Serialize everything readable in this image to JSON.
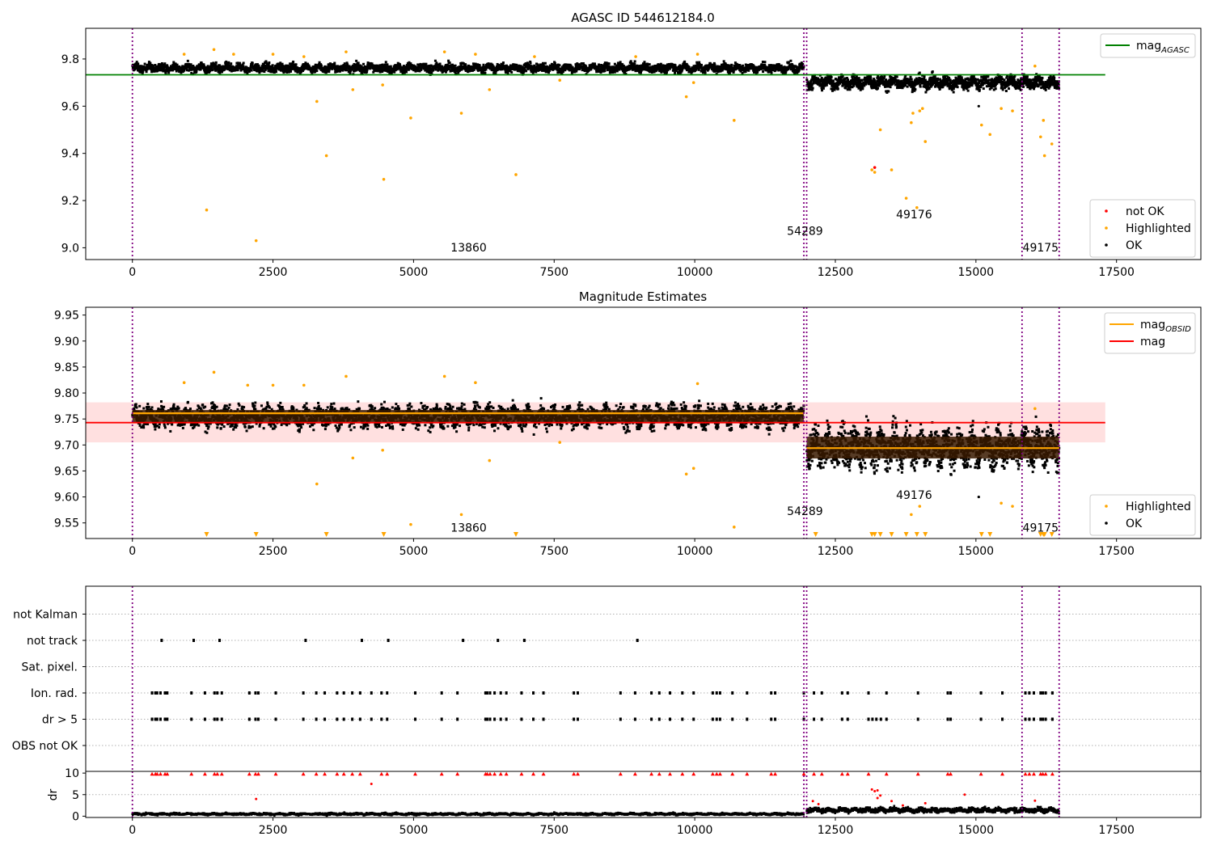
{
  "chart_data": [
    {
      "type": "scatter",
      "title": "AGASC ID 544612184.0",
      "xlabel": "",
      "ylabel": "",
      "xlim": [
        -830,
        19000
      ],
      "ylim": [
        8.95,
        9.93
      ],
      "xticks": [
        0,
        2500,
        5000,
        7500,
        10000,
        12500,
        15000,
        17500
      ],
      "xtick_labels": [
        "0",
        "2500",
        "5000",
        "7500",
        "10000",
        "12500",
        "15000",
        "17500"
      ],
      "yticks": [
        9.0,
        9.2,
        9.4,
        9.6,
        9.8
      ],
      "ytick_labels": [
        "9.0",
        "9.2",
        "9.4",
        "9.6",
        "9.8"
      ],
      "vlines": [
        0,
        11940,
        11990,
        15820,
        16480
      ],
      "vline_color": "#800080",
      "obsid_labels": [
        {
          "text": "13860",
          "x": 5980,
          "y": 8.985
        },
        {
          "text": "54289",
          "x": 11960,
          "y": 9.055
        },
        {
          "text": "49176",
          "x": 13900,
          "y": 9.125
        },
        {
          "text": "49175",
          "x": 16150,
          "y": 8.985
        }
      ],
      "hlines": [
        {
          "name": "mag",
          "subscript": "AGASC",
          "y": 9.733,
          "x": [
            -830,
            17300
          ],
          "color": "#008000"
        }
      ],
      "ok_bands": [
        {
          "x": [
            0,
            11940
          ],
          "center": 9.762,
          "spread": 0.03
        },
        {
          "x": [
            11990,
            16480
          ],
          "center": 9.7,
          "spread": 0.045
        }
      ],
      "highlighted": [
        [
          1320,
          9.16
        ],
        [
          2200,
          9.03
        ],
        [
          3280,
          9.62
        ],
        [
          3450,
          9.39
        ],
        [
          3920,
          9.67
        ],
        [
          4450,
          9.69
        ],
        [
          4470,
          9.29
        ],
        [
          4950,
          9.55
        ],
        [
          5850,
          9.57
        ],
        [
          6350,
          9.67
        ],
        [
          6820,
          9.31
        ],
        [
          7600,
          9.71
        ],
        [
          9850,
          9.64
        ],
        [
          9980,
          9.7
        ],
        [
          10700,
          9.54
        ],
        [
          13150,
          9.33
        ],
        [
          13200,
          9.32
        ],
        [
          13300,
          9.5
        ],
        [
          13500,
          9.33
        ],
        [
          13760,
          9.21
        ],
        [
          13850,
          9.53
        ],
        [
          13880,
          9.57
        ],
        [
          13950,
          9.17
        ],
        [
          14000,
          9.58
        ],
        [
          14050,
          9.59
        ],
        [
          14100,
          9.45
        ],
        [
          15100,
          9.52
        ],
        [
          15250,
          9.48
        ],
        [
          15450,
          9.59
        ],
        [
          15650,
          9.58
        ],
        [
          16150,
          9.47
        ],
        [
          16200,
          9.54
        ],
        [
          16220,
          9.39
        ],
        [
          16350,
          9.44
        ],
        [
          920,
          9.82
        ],
        [
          1450,
          9.84
        ],
        [
          1800,
          9.82
        ],
        [
          2500,
          9.82
        ],
        [
          3050,
          9.81
        ],
        [
          3800,
          9.83
        ],
        [
          5550,
          9.83
        ],
        [
          6100,
          9.82
        ],
        [
          7150,
          9.81
        ],
        [
          8950,
          9.81
        ],
        [
          10050,
          9.82
        ],
        [
          16050,
          9.77
        ]
      ],
      "not_ok": [
        [
          13200,
          9.34
        ]
      ],
      "legends": [
        {
          "position": "top-right",
          "entries": [
            {
              "name": "mag",
              "subscript": "AGASC",
              "kind": "line",
              "color": "#008000"
            }
          ]
        },
        {
          "position": "lower-right",
          "entries": [
            {
              "name": "not OK",
              "kind": "marker",
              "color": "#ff0000"
            },
            {
              "name": "Highlighted",
              "kind": "marker",
              "color": "#ffa500"
            },
            {
              "name": "OK",
              "kind": "marker",
              "color": "#000000"
            }
          ]
        }
      ]
    },
    {
      "type": "scatter",
      "title": "Magnitude Estimates",
      "xlabel": "",
      "ylabel": "",
      "xlim": [
        -830,
        19000
      ],
      "ylim": [
        9.52,
        9.965
      ],
      "xticks": [
        0,
        2500,
        5000,
        7500,
        10000,
        12500,
        15000,
        17500
      ],
      "xtick_labels": [
        "0",
        "2500",
        "5000",
        "7500",
        "10000",
        "12500",
        "15000",
        "17500"
      ],
      "yticks": [
        9.55,
        9.6,
        9.65,
        9.7,
        9.75,
        9.8,
        9.85,
        9.9,
        9.95
      ],
      "ytick_labels": [
        "9.55",
        "9.60",
        "9.65",
        "9.70",
        "9.75",
        "9.80",
        "9.85",
        "9.90",
        "9.95"
      ],
      "vlines": [
        0,
        11940,
        11990,
        15820,
        16480
      ],
      "vline_color": "#800080",
      "obsid_labels": [
        {
          "text": "13860",
          "x": 5980,
          "y": 9.533
        },
        {
          "text": "54289",
          "x": 11960,
          "y": 9.565
        },
        {
          "text": "49176",
          "x": 13900,
          "y": 9.596
        },
        {
          "text": "49175",
          "x": 16150,
          "y": 9.533
        }
      ],
      "mag_band": {
        "x": [
          -830,
          17300
        ],
        "y": [
          9.705,
          9.782
        ],
        "color": "#ffcccc"
      },
      "mag_line": {
        "name": "mag",
        "y": 9.743,
        "x": [
          -830,
          17300
        ],
        "color": "#ff0000"
      },
      "obsid_mags": [
        {
          "x": [
            0,
            11940
          ],
          "y": 9.761
        },
        {
          "x": [
            11990,
            16480
          ],
          "y": 9.694
        }
      ],
      "ok_bands": [
        {
          "x": [
            0,
            11940
          ],
          "center": 9.755,
          "spread": 0.035
        },
        {
          "x": [
            11990,
            16480
          ],
          "center": 9.695,
          "spread": 0.06
        }
      ],
      "highlighted": [
        [
          920,
          9.82
        ],
        [
          1450,
          9.84
        ],
        [
          2050,
          9.815
        ],
        [
          2500,
          9.815
        ],
        [
          3280,
          9.625
        ],
        [
          3050,
          9.815
        ],
        [
          3800,
          9.832
        ],
        [
          3920,
          9.675
        ],
        [
          4450,
          9.69
        ],
        [
          4950,
          9.547
        ],
        [
          5550,
          9.832
        ],
        [
          5850,
          9.566
        ],
        [
          6350,
          9.67
        ],
        [
          6100,
          9.82
        ],
        [
          7600,
          9.705
        ],
        [
          9850,
          9.644
        ],
        [
          9980,
          9.655
        ],
        [
          10050,
          9.818
        ],
        [
          10700,
          9.542
        ],
        [
          13850,
          9.566
        ],
        [
          14000,
          9.582
        ],
        [
          15450,
          9.588
        ],
        [
          15650,
          9.582
        ],
        [
          16050,
          9.77
        ]
      ],
      "floor_markers": [
        1320,
        2200,
        3450,
        4470,
        6820,
        12150,
        13150,
        13200,
        13300,
        13500,
        13760,
        13950,
        14100,
        15100,
        15250,
        16150,
        16200,
        16220,
        16350
      ],
      "legends": [
        {
          "position": "top-right",
          "entries": [
            {
              "name": "mag",
              "subscript": "OBSID",
              "kind": "line",
              "color": "#ffa500"
            },
            {
              "name": "mag",
              "kind": "line",
              "color": "#ff0000"
            }
          ]
        },
        {
          "position": "lower-right",
          "entries": [
            {
              "name": "Highlighted",
              "kind": "marker",
              "color": "#ffa500"
            },
            {
              "name": "OK",
              "kind": "marker",
              "color": "#000000"
            }
          ]
        }
      ]
    },
    {
      "type": "scatter",
      "title": "",
      "xlabel": "",
      "ylabel": "",
      "xlim": [
        -830,
        19000
      ],
      "categories": [
        "OBS not OK",
        "dr > 5",
        "Ion. rad.",
        "Sat. pixel.",
        "not track",
        "not Kalman"
      ],
      "vlines": [
        0,
        11940,
        11990,
        15820,
        16480
      ],
      "vline_color": "#800080",
      "flag_points": {
        "not track": [
          520,
          1090,
          1550,
          3080,
          4080,
          4550,
          5880,
          6500,
          6970,
          8980
        ],
        "Ion. rad.": [
          350,
          410,
          440,
          500,
          580,
          620,
          1050,
          1290,
          1460,
          1510,
          1590,
          2080,
          2190,
          2240,
          2550,
          3040,
          3270,
          3420,
          3640,
          3760,
          3910,
          4050,
          4250,
          4430,
          4530,
          5030,
          5500,
          5780,
          6280,
          6310,
          6360,
          6440,
          6550,
          6650,
          6920,
          7130,
          7310,
          7850,
          7920,
          8680,
          8940,
          9230,
          9370,
          9560,
          9780,
          9980,
          10320,
          10390,
          10450,
          10670,
          10930,
          11360,
          11430,
          11940,
          12120,
          12260,
          12620,
          12720,
          13090,
          13410,
          13970,
          14500,
          14550,
          15090,
          15470,
          15880,
          15950,
          16030,
          16150,
          16190,
          16240,
          16360
        ],
        "dr > 5": [
          350,
          410,
          440,
          500,
          580,
          620,
          1050,
          1290,
          1460,
          1510,
          1590,
          2080,
          2190,
          2240,
          2550,
          3040,
          3270,
          3420,
          3640,
          3760,
          3910,
          4050,
          4250,
          4430,
          4530,
          5030,
          5500,
          5780,
          6280,
          6310,
          6360,
          6440,
          6550,
          6650,
          6920,
          7130,
          7310,
          7850,
          7920,
          8680,
          8940,
          9230,
          9370,
          9560,
          9780,
          9980,
          10320,
          10390,
          10450,
          10670,
          10930,
          11360,
          11430,
          11940,
          12120,
          12260,
          12620,
          12720,
          13090,
          13160,
          13230,
          13310,
          13410,
          13970,
          14500,
          14550,
          15090,
          15470,
          15880,
          15950,
          16030,
          16150,
          16190,
          16240,
          16360
        ]
      }
    },
    {
      "type": "scatter",
      "title": "",
      "xlabel": "",
      "ylabel": "dr",
      "xlim": [
        -830,
        19000
      ],
      "ylim": [
        -0.3,
        10.4
      ],
      "yticks": [
        0,
        5,
        10
      ],
      "ytick_labels": [
        "0",
        "5",
        "10"
      ],
      "vlines": [
        0,
        11940,
        11990,
        15820,
        16480
      ],
      "vline_color": "#800080",
      "ok_bands": [
        {
          "x": [
            0,
            11940
          ],
          "center": 0.5,
          "spread": 0.4
        },
        {
          "x": [
            11990,
            16480
          ],
          "center": 1.4,
          "spread": 0.9
        }
      ],
      "red_ceiling": [
        350,
        410,
        440,
        500,
        580,
        620,
        1050,
        1290,
        1460,
        1510,
        1590,
        2080,
        2190,
        2240,
        2550,
        3040,
        3270,
        3420,
        3640,
        3760,
        3910,
        4050,
        4430,
        4530,
        5030,
        5500,
        5780,
        6280,
        6310,
        6360,
        6440,
        6550,
        6650,
        6920,
        7130,
        7310,
        7850,
        7920,
        8680,
        8940,
        9230,
        9370,
        9560,
        9780,
        9980,
        10320,
        10390,
        10450,
        10670,
        10930,
        11360,
        11430,
        11940,
        12120,
        12260,
        12620,
        12720,
        13090,
        13410,
        13970,
        14500,
        14550,
        15090,
        15470,
        15880,
        15950,
        16030,
        16150,
        16190,
        16240,
        16360
      ],
      "red_points": [
        [
          4250,
          7.5
        ],
        [
          2200,
          4.0
        ],
        [
          13150,
          6.2
        ],
        [
          13200,
          5.8
        ],
        [
          13250,
          6.0
        ],
        [
          13300,
          4.8
        ],
        [
          13250,
          4.2
        ],
        [
          13500,
          3.5
        ],
        [
          14800,
          5.0
        ],
        [
          12100,
          3.5
        ],
        [
          12200,
          2.8
        ],
        [
          13700,
          2.5
        ],
        [
          14100,
          3.0
        ],
        [
          16050,
          3.6
        ]
      ]
    }
  ]
}
